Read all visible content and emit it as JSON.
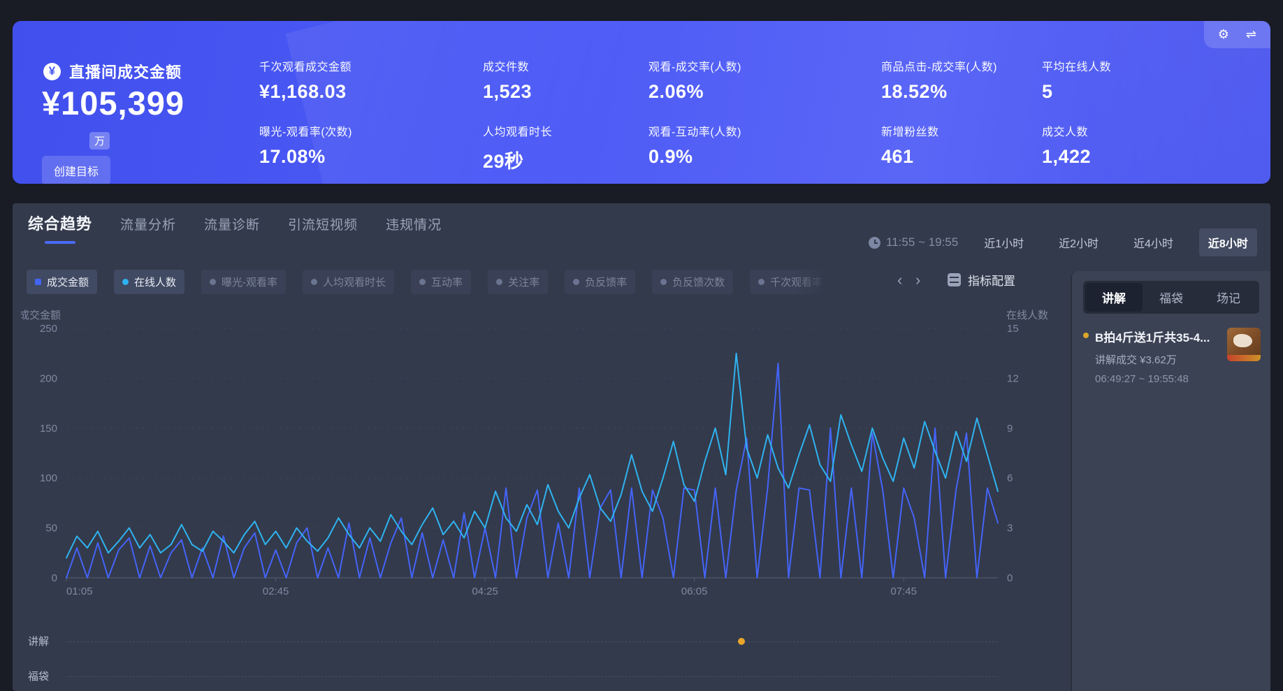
{
  "glyphs": {
    "yuan": "¥",
    "gear": "⚙",
    "swap": "⇌",
    "chev_left": "‹",
    "chev_right": "›"
  },
  "colors": {
    "banner_bg": "#4c5af6",
    "accent_blue": "#4464f8",
    "accent_cyan": "#2fb3f0",
    "marker_yellow": "#e8a62b",
    "panel_bg": "#333a4b",
    "right_panel_bg": "#3b4254",
    "selected_button_bg": "#434c63",
    "tab_underline": "#4a6bfb"
  },
  "banner": {
    "title": "直播间成交金额",
    "main_value": "¥105,399",
    "main_unit": "万",
    "create_goal_label": "创建目标",
    "metrics": [
      {
        "label": "千次观看成交金额",
        "value": "¥1,168.03"
      },
      {
        "label": "曝光-观看率(次数)",
        "value": "17.08%"
      },
      {
        "label": "成交件数",
        "value": "1,523"
      },
      {
        "label": "人均观看时长",
        "value": "29秒"
      },
      {
        "label": "观看-成交率(人数)",
        "value": "2.06%"
      },
      {
        "label": "观看-互动率(人数)",
        "value": "0.9%"
      },
      {
        "label": "商品点击-成交率(人数)",
        "value": "18.52%"
      },
      {
        "label": "新增粉丝数",
        "value": "461"
      },
      {
        "label": "平均在线人数",
        "value": "5"
      },
      {
        "label": "成交人数",
        "value": "1,422"
      }
    ]
  },
  "tabs": {
    "items": [
      "综合趋势",
      "流量分析",
      "流量诊断",
      "引流短视频",
      "违规情况"
    ],
    "active_index": 0
  },
  "time_filter": {
    "current_range": "11:55 ~ 19:55",
    "options": [
      "近1小时",
      "近2小时",
      "近4小时",
      "近8小时"
    ],
    "selected_index": 3
  },
  "toolbar": {
    "chips": [
      {
        "label": "成交金额",
        "color": "#4464f8",
        "shape": "square",
        "active": true
      },
      {
        "label": "在线人数",
        "color": "#2fb3f0",
        "shape": "circle",
        "active": true
      },
      {
        "label": "曝光-观看率",
        "color": "#6b7490",
        "shape": "circle",
        "active": false
      },
      {
        "label": "人均观看时长",
        "color": "#6b7490",
        "shape": "circle",
        "active": false
      },
      {
        "label": "互动率",
        "color": "#6b7490",
        "shape": "circle",
        "active": false
      },
      {
        "label": "关注率",
        "color": "#6b7490",
        "shape": "circle",
        "active": false
      },
      {
        "label": "负反馈率",
        "color": "#6b7490",
        "shape": "circle",
        "active": false
      },
      {
        "label": "负反馈次数",
        "color": "#6b7490",
        "shape": "circle",
        "active": false
      },
      {
        "label": "千次观看率",
        "color": "#6b7490",
        "shape": "circle",
        "active": false,
        "truncated": true
      }
    ],
    "metric_config_label": "指标配置"
  },
  "right_panel": {
    "tabs": [
      "讲解",
      "福袋",
      "场记"
    ],
    "active_tab_index": 0,
    "item": {
      "title": "B拍4斤送1斤共35-4...",
      "subtitle": "讲解成交 ¥3.62万",
      "time_range": "06:49:27 ~ 19:55:48"
    }
  },
  "timeline_rows": [
    "讲解",
    "福袋"
  ],
  "chart_data": {
    "type": "line",
    "title": "综合趋势",
    "x_start": "01:05",
    "x_step_minutes": 5,
    "x_tick_labels": [
      "01:05",
      "02:45",
      "04:25",
      "06:05",
      "07:45"
    ],
    "x_tick_indices": [
      0,
      20,
      40,
      60,
      80
    ],
    "left_axis": {
      "title": "成交金额",
      "ticks": [
        "250",
        "200",
        "150",
        "100",
        "50",
        "0"
      ],
      "min": 0,
      "max": 250
    },
    "right_axis": {
      "title": "在线人数",
      "ticks": [
        "15",
        "12",
        "9",
        "6",
        "3",
        "0"
      ],
      "min": 0,
      "max": 15
    },
    "grid": "horizontal-dashed",
    "legend_position": "top-chips",
    "series": [
      {
        "name": "成交金额",
        "axis": "left",
        "color": "#4464f8",
        "values": [
          0,
          30,
          0,
          35,
          0,
          28,
          40,
          0,
          32,
          0,
          25,
          38,
          0,
          30,
          0,
          42,
          0,
          30,
          45,
          0,
          28,
          0,
          35,
          50,
          0,
          30,
          0,
          55,
          0,
          40,
          0,
          35,
          60,
          0,
          45,
          0,
          38,
          0,
          65,
          0,
          50,
          0,
          90,
          0,
          60,
          88,
          0,
          55,
          0,
          90,
          0,
          70,
          88,
          0,
          90,
          0,
          88,
          60,
          0,
          90,
          88,
          0,
          90,
          0,
          88,
          140,
          0,
          90,
          215,
          0,
          90,
          88,
          0,
          150,
          0,
          90,
          0,
          145,
          88,
          0,
          90,
          60,
          0,
          150,
          0,
          88,
          145,
          0,
          90,
          55
        ]
      },
      {
        "name": "在线人数",
        "axis": "right",
        "color": "#2fb3f0",
        "values": [
          1.2,
          2.5,
          1.8,
          2.8,
          1.5,
          2.2,
          3.0,
          1.8,
          2.6,
          1.5,
          2.0,
          3.2,
          2.0,
          1.6,
          2.8,
          2.2,
          1.5,
          2.6,
          3.4,
          2.0,
          2.8,
          1.8,
          3.0,
          2.2,
          1.6,
          2.4,
          3.6,
          2.6,
          1.8,
          3.0,
          2.2,
          3.8,
          2.8,
          2.0,
          3.2,
          4.2,
          2.6,
          3.4,
          2.4,
          4.0,
          3.0,
          5.2,
          3.6,
          2.8,
          4.4,
          3.2,
          5.6,
          4.0,
          3.0,
          4.8,
          6.2,
          4.2,
          3.4,
          5.0,
          7.4,
          5.2,
          4.0,
          6.0,
          8.2,
          5.6,
          4.6,
          7.0,
          9.0,
          6.2,
          13.5,
          7.8,
          6.0,
          8.6,
          6.6,
          5.4,
          7.4,
          9.2,
          6.8,
          5.8,
          9.8,
          8.0,
          6.4,
          9.0,
          7.2,
          5.8,
          8.4,
          6.6,
          9.4,
          7.6,
          6.0,
          8.8,
          7.0,
          9.6,
          7.4,
          5.2
        ]
      }
    ],
    "event_markers": [
      {
        "row": "讲解",
        "time_fraction": 0.725,
        "color": "#e8a62b"
      }
    ]
  }
}
